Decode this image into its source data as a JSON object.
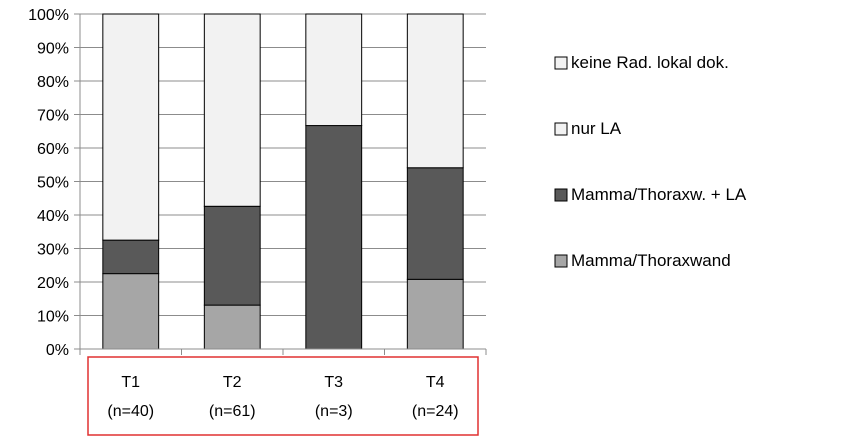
{
  "chart_data": {
    "type": "bar",
    "stacked": true,
    "categories": [
      "T1",
      "T2",
      "T3",
      "T4"
    ],
    "category_sublabels": [
      "(n=40)",
      "(n=61)",
      "(n=3)",
      "(n=24)"
    ],
    "series": [
      {
        "name": "Mamma/Thoraxwand",
        "color": "#a6a6a6",
        "values": [
          22.5,
          13.1,
          0,
          20.8
        ]
      },
      {
        "name": "Mamma/Thoraxw. + LA",
        "color": "#595959",
        "values": [
          10.0,
          29.5,
          66.7,
          33.3
        ]
      },
      {
        "name": "nur LA",
        "color": "#f2f2f2",
        "values": [
          0,
          0,
          0,
          0
        ]
      },
      {
        "name": "keine Rad. lokal dok.",
        "color": "#f2f2f2",
        "values": [
          67.5,
          57.4,
          33.3,
          45.9
        ]
      }
    ],
    "legend_order": [
      "keine Rad. lokal dok.",
      "nur LA",
      "Mamma/Thoraxw. + LA",
      "Mamma/Thoraxwand"
    ],
    "y_ticks": [
      "0%",
      "10%",
      "20%",
      "30%",
      "40%",
      "50%",
      "60%",
      "70%",
      "80%",
      "90%",
      "100%"
    ],
    "ylim": [
      0,
      100
    ],
    "title": "",
    "xlabel": "",
    "ylabel": "",
    "grid": true,
    "legend_position": "right",
    "highlight_color": "#e03030"
  }
}
